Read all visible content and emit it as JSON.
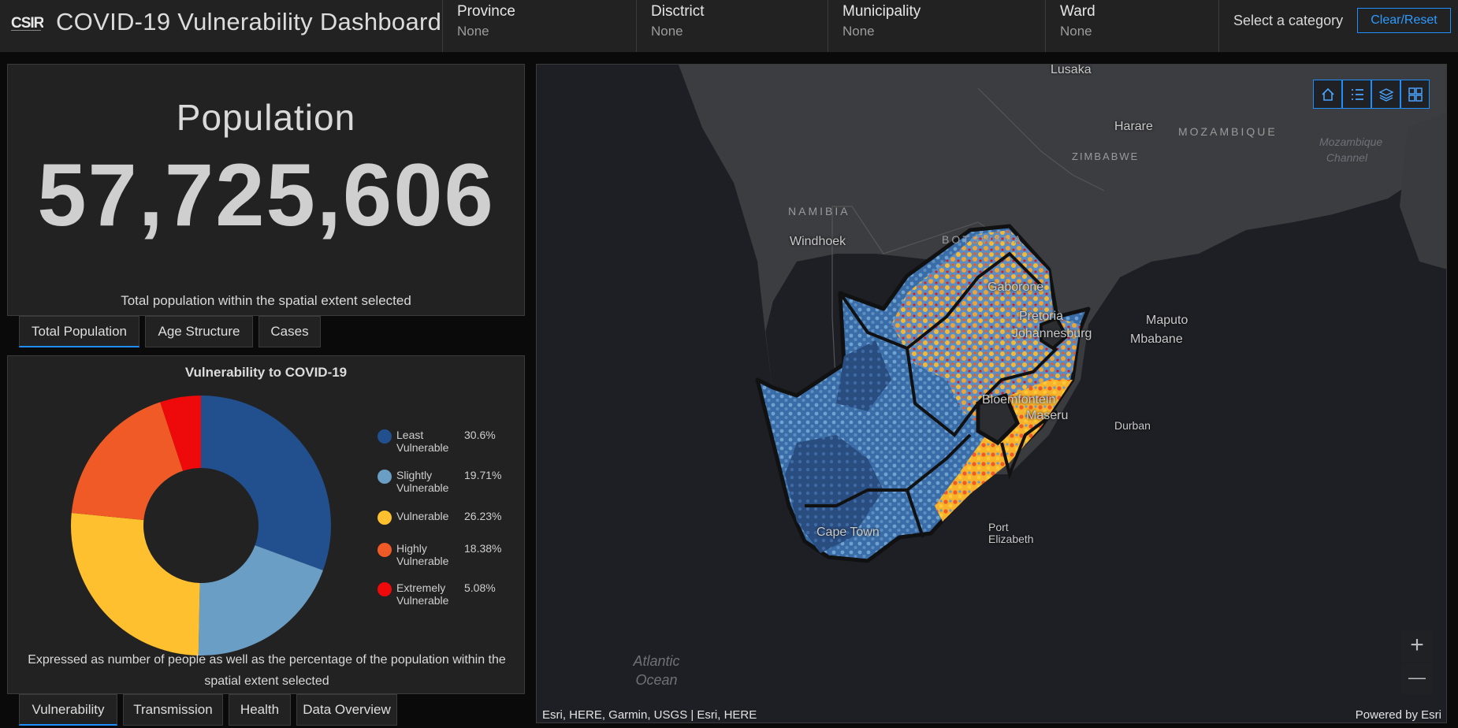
{
  "header": {
    "logo_text": "CSIR",
    "title": "COVID-19 Vulnerability Dashboard",
    "selectors": [
      {
        "label": "Province",
        "value": "None"
      },
      {
        "label": "Disctrict",
        "value": "None"
      },
      {
        "label": "Municipality",
        "value": "None"
      },
      {
        "label": "Ward",
        "value": "None"
      }
    ],
    "select_category": "Select a category",
    "clear_reset": "Clear/Reset"
  },
  "population": {
    "title": "Population",
    "value": "57,725,606",
    "caption": "Total population within the spatial extent selected",
    "tabs": [
      "Total Population",
      "Age Structure",
      "Cases"
    ]
  },
  "vulnerability": {
    "title": "Vulnerability to COVID-19",
    "legend": [
      {
        "label": "Least Vulnerable",
        "pct": "30.6%",
        "color": "#22508f"
      },
      {
        "label": "Slightly Vulnerable",
        "pct": "19.71%",
        "color": "#6a9ec5"
      },
      {
        "label": "Vulnerable",
        "pct": "26.23%",
        "color": "#fec02f"
      },
      {
        "label": "Highly Vulnerable",
        "pct": "18.38%",
        "color": "#f05a26"
      },
      {
        "label": "Extremely Vulnerable",
        "pct": "5.08%",
        "color": "#ee0a0a"
      }
    ],
    "caption": "Expressed as number of people as well as the percentage of the population within the spatial extent selected",
    "tabs": [
      "Vulnerability",
      "Transmission",
      "Health",
      "Data Overview"
    ]
  },
  "chart_data": {
    "type": "pie",
    "title": "Vulnerability to COVID-19",
    "categories": [
      "Least Vulnerable",
      "Slightly Vulnerable",
      "Vulnerable",
      "Highly Vulnerable",
      "Extremely Vulnerable"
    ],
    "values": [
      30.6,
      19.71,
      26.23,
      18.38,
      5.08
    ],
    "colors": [
      "#22508f",
      "#6a9ec5",
      "#fec02f",
      "#f05a26",
      "#ee0a0a"
    ],
    "donut": true,
    "legend": "right"
  },
  "map": {
    "cities": [
      "Lusaka",
      "Harare",
      "Windhoek",
      "Gaborone",
      "Pretoria",
      "Johannesburg",
      "Maputo",
      "Mbabane",
      "Bloemfontein",
      "Maseru",
      "Durban",
      "Cape Town",
      "Port Elizabeth"
    ],
    "countries": [
      "NAMIBIA",
      "BOTSWANA",
      "ZIMBABWE",
      "MOZAMBIQUE"
    ],
    "water": {
      "channel": "Mozambique Channel",
      "ocean": "Atlantic Ocean"
    },
    "zoom_in": "+",
    "zoom_out": "—",
    "attribution": "Esri, HERE, Garmin, USGS | Esri, HERE",
    "powered_by": "Powered by Esri",
    "tool_icons": [
      "home-icon",
      "legend-list-icon",
      "layers-icon",
      "basemap-gallery-icon"
    ]
  }
}
